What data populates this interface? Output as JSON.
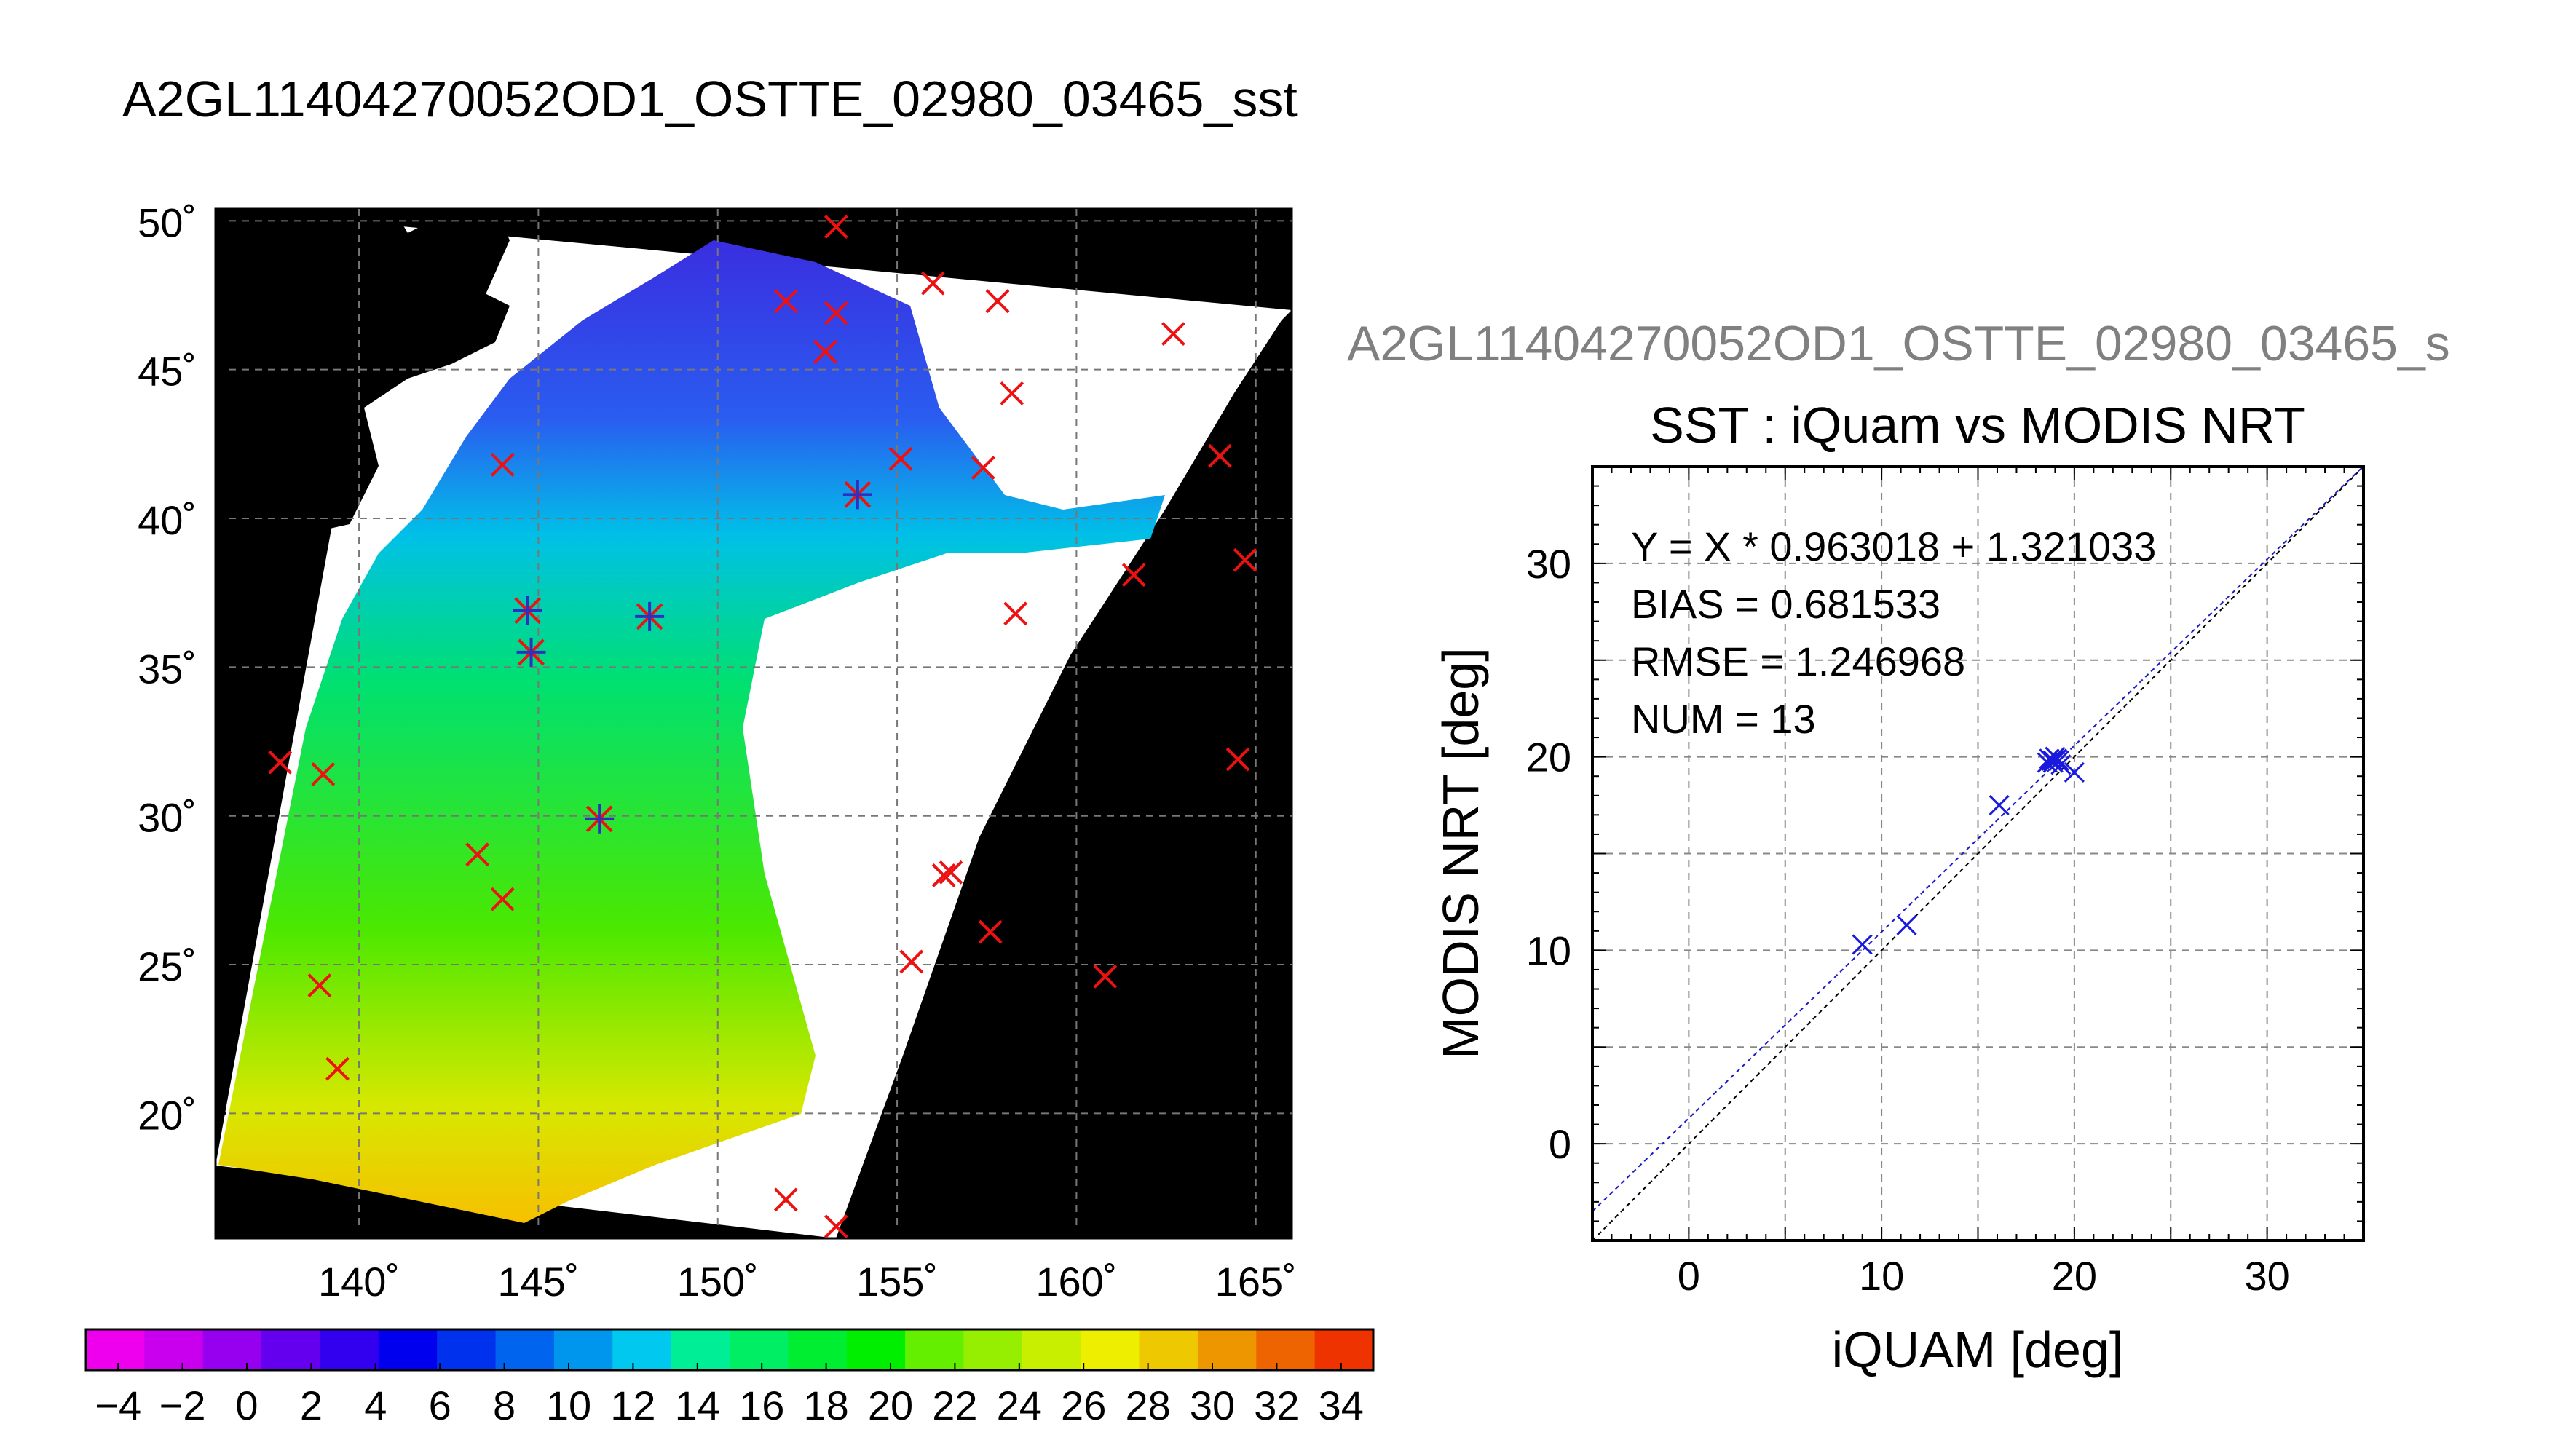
{
  "page_title": "A2GL11404270052OD1_OSTTE_02980_03465_sst",
  "map": {
    "lat_ticks": [
      50,
      45,
      40,
      35,
      30,
      25,
      20
    ],
    "lon_ticks": [
      140,
      145,
      150,
      155,
      160,
      165
    ],
    "lat_range": [
      15.8,
      50.4
    ],
    "lon_range": [
      136.0,
      166.0
    ],
    "colorbar_ticks": [
      -4,
      -2,
      0,
      2,
      4,
      6,
      8,
      10,
      12,
      14,
      16,
      18,
      20,
      22,
      24,
      26,
      28,
      30,
      32,
      34
    ],
    "colorbar_range": [
      -5,
      35
    ],
    "colorbar_colors": [
      "#ee00ee",
      "#c800ee",
      "#9600ee",
      "#6400ee",
      "#3200ee",
      "#0000ee",
      "#0032ee",
      "#0064ee",
      "#0096ee",
      "#00c8ee",
      "#00ee96",
      "#00ee64",
      "#00ee32",
      "#00ee00",
      "#64ee00",
      "#96ee00",
      "#c8ee00",
      "#eeee00",
      "#eec800",
      "#ee9600",
      "#ee6400",
      "#ee3200"
    ],
    "red_markers": [
      [
        153.3,
        49.8
      ],
      [
        151.9,
        47.3
      ],
      [
        153.3,
        46.9
      ],
      [
        156.0,
        47.9
      ],
      [
        157.8,
        47.3
      ],
      [
        162.7,
        46.2
      ],
      [
        153.0,
        45.6
      ],
      [
        158.2,
        44.2
      ],
      [
        144.0,
        41.8
      ],
      [
        155.1,
        42.0
      ],
      [
        157.4,
        41.7
      ],
      [
        164.0,
        42.1
      ],
      [
        161.6,
        38.1
      ],
      [
        164.7,
        38.6
      ],
      [
        158.3,
        36.8
      ],
      [
        137.8,
        31.8
      ],
      [
        139.0,
        31.4
      ],
      [
        164.5,
        31.9
      ],
      [
        143.3,
        28.7
      ],
      [
        144.0,
        27.2
      ],
      [
        156.5,
        28.1
      ],
      [
        156.3,
        28.0
      ],
      [
        157.6,
        26.1
      ],
      [
        155.4,
        25.1
      ],
      [
        160.8,
        24.6
      ],
      [
        138.9,
        24.3
      ],
      [
        139.4,
        21.5
      ],
      [
        151.9,
        17.1
      ],
      [
        153.3,
        16.2
      ]
    ],
    "blue_markers": [
      [
        144.7,
        36.9
      ],
      [
        144.8,
        35.5
      ],
      [
        148.1,
        36.7
      ],
      [
        146.7,
        29.9
      ],
      [
        153.9,
        40.8
      ]
    ]
  },
  "scatter_title": "A2GL11404270052OD1_OSTTE_02980_03465_s",
  "chart_data": {
    "type": "scatter",
    "title": "SST : iQuam vs MODIS NRT",
    "xlabel": "iQUAM [deg]",
    "ylabel": "MODIS NRT [deg]",
    "xlim": [
      -5,
      35
    ],
    "ylim": [
      -5,
      35
    ],
    "x_ticks": [
      0,
      10,
      20,
      30
    ],
    "y_ticks": [
      0,
      10,
      20,
      30
    ],
    "grid": true,
    "points": [
      [
        9.0,
        10.3
      ],
      [
        11.3,
        11.3
      ],
      [
        16.1,
        17.5
      ],
      [
        18.7,
        19.9
      ],
      [
        18.9,
        19.7
      ],
      [
        19.2,
        19.8
      ],
      [
        19.0,
        20.0
      ],
      [
        18.8,
        19.8
      ],
      [
        19.3,
        19.6
      ],
      [
        18.6,
        19.7
      ],
      [
        20.0,
        19.2
      ],
      [
        19.1,
        19.9
      ],
      [
        18.9,
        19.8
      ]
    ],
    "identity_line": true,
    "fit": {
      "slope": 0.963018,
      "intercept": 1.321033
    },
    "annotations": [
      "Y = X * 0.963018 + 1.321033",
      "BIAS = 0.681533",
      "RMSE = 1.246968",
      "NUM = 13"
    ]
  }
}
